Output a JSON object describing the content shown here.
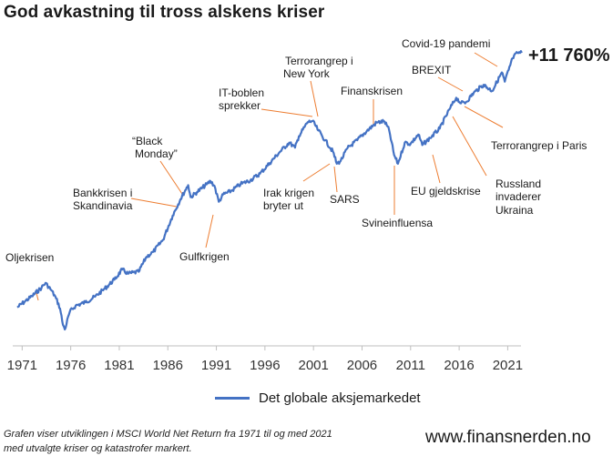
{
  "title": "God avkastning til tross alskens kriser",
  "total_return": "+11 760%",
  "legend": {
    "label": "Det globale aksjemarkedet"
  },
  "footnote": {
    "line1": "Grafen viser utviklingen i MSCI World Net Return fra 1971 til og med 2021",
    "line2": "med utvalgte kriser og katastrofer markert."
  },
  "site": "www.finansnerden.no",
  "colors": {
    "series": "#4472c4",
    "callout": "#ed7d31",
    "axis": "#bfbfbf"
  },
  "chart_data": {
    "type": "line",
    "y_scale": "log",
    "grid": false,
    "legend_position": "bottom",
    "x_ticks": [
      "1971",
      "1976",
      "1981",
      "1986",
      "1991",
      "1996",
      "2001",
      "2006",
      "2011",
      "2016",
      "2021"
    ],
    "series": [
      {
        "name": "Det globale aksjemarkedet",
        "points": [
          [
            1970.0,
            100
          ],
          [
            1970.8,
            112
          ],
          [
            1971.5,
            123
          ],
          [
            1972.5,
            145
          ],
          [
            1972.9,
            158
          ],
          [
            1973.5,
            138
          ],
          [
            1974.0,
            118
          ],
          [
            1974.4,
            98
          ],
          [
            1974.7,
            72
          ],
          [
            1974.9,
            66
          ],
          [
            1975.4,
            92
          ],
          [
            1976.0,
            103
          ],
          [
            1977.0,
            110
          ],
          [
            1978.0,
            122
          ],
          [
            1979.0,
            142
          ],
          [
            1980.0,
            168
          ],
          [
            1980.8,
            203
          ],
          [
            1981.4,
            188
          ],
          [
            1982.5,
            195
          ],
          [
            1983.3,
            258
          ],
          [
            1984.0,
            283
          ],
          [
            1985.0,
            355
          ],
          [
            1986.0,
            560
          ],
          [
            1986.8,
            760
          ],
          [
            1987.3,
            900
          ],
          [
            1987.6,
            990
          ],
          [
            1987.85,
            790
          ],
          [
            1988.5,
            868
          ],
          [
            1989.5,
            1005
          ],
          [
            1989.9,
            1065
          ],
          [
            1990.3,
            980
          ],
          [
            1990.75,
            725
          ],
          [
            1991.2,
            830
          ],
          [
            1992.0,
            885
          ],
          [
            1993.0,
            1010
          ],
          [
            1994.0,
            1085
          ],
          [
            1995.0,
            1230
          ],
          [
            1996.0,
            1500
          ],
          [
            1997.0,
            1835
          ],
          [
            1998.0,
            2200
          ],
          [
            1998.6,
            2000
          ],
          [
            1999.0,
            2480
          ],
          [
            1999.9,
            3230
          ],
          [
            2000.4,
            3300
          ],
          [
            2001.0,
            2760
          ],
          [
            2001.7,
            2300
          ],
          [
            2002.5,
            1860
          ],
          [
            2002.9,
            1480
          ],
          [
            2003.3,
            1560
          ],
          [
            2004.0,
            1980
          ],
          [
            2005.0,
            2300
          ],
          [
            2006.0,
            2740
          ],
          [
            2007.0,
            3200
          ],
          [
            2007.8,
            3280
          ],
          [
            2008.3,
            2760
          ],
          [
            2008.8,
            1740
          ],
          [
            2009.2,
            1480
          ],
          [
            2009.9,
            2200
          ],
          [
            2010.5,
            2150
          ],
          [
            2011.3,
            2560
          ],
          [
            2011.7,
            2100
          ],
          [
            2012.5,
            2400
          ],
          [
            2013.5,
            2860
          ],
          [
            2014.5,
            4100
          ],
          [
            2015.2,
            5100
          ],
          [
            2015.7,
            4600
          ],
          [
            2016.2,
            4700
          ],
          [
            2017.0,
            5600
          ],
          [
            2018.0,
            6500
          ],
          [
            2018.9,
            5800
          ],
          [
            2019.9,
            8200
          ],
          [
            2020.2,
            6900
          ],
          [
            2020.6,
            8600
          ],
          [
            2021.0,
            10700
          ],
          [
            2021.5,
            11850
          ],
          [
            2021.95,
            11860
          ]
        ]
      }
    ],
    "annotations": [
      {
        "text": [
          "Oljekrisen"
        ],
        "year": 1974.9
      },
      {
        "text": [
          "Bankkrisen i",
          "Skandinavia"
        ],
        "year": 1987.0
      },
      {
        "text": [
          "“Black",
          "Monday”"
        ],
        "year": 1987.8
      },
      {
        "text": [
          "Gulfkrigen"
        ],
        "year": 1990.7
      },
      {
        "text": [
          "IT-boblen",
          "sprekker"
        ],
        "year": 2000.3
      },
      {
        "text": [
          "Terrorangrep i",
          "New York"
        ],
        "year": 2001.7
      },
      {
        "text": [
          "Irak krigen",
          "bryter ut"
        ],
        "year": 2003.0
      },
      {
        "text": [
          "SARS"
        ],
        "year": 2002.9
      },
      {
        "text": [
          "Finanskrisen"
        ],
        "year": 2007.8
      },
      {
        "text": [
          "Svineinfluensa"
        ],
        "year": 2009.2
      },
      {
        "text": [
          "EU gjeldskrise"
        ],
        "year": 2011.7
      },
      {
        "text": [
          "BREXIT"
        ],
        "year": 2016.4
      },
      {
        "text": [
          "Terrorangrep i Paris"
        ],
        "year": 2015.9
      },
      {
        "text": [
          "Russland",
          "invaderer",
          "Ukraina"
        ],
        "year": 2015.0
      },
      {
        "text": [
          "Covid-19 pandemi"
        ],
        "year": 2020.2
      }
    ]
  }
}
